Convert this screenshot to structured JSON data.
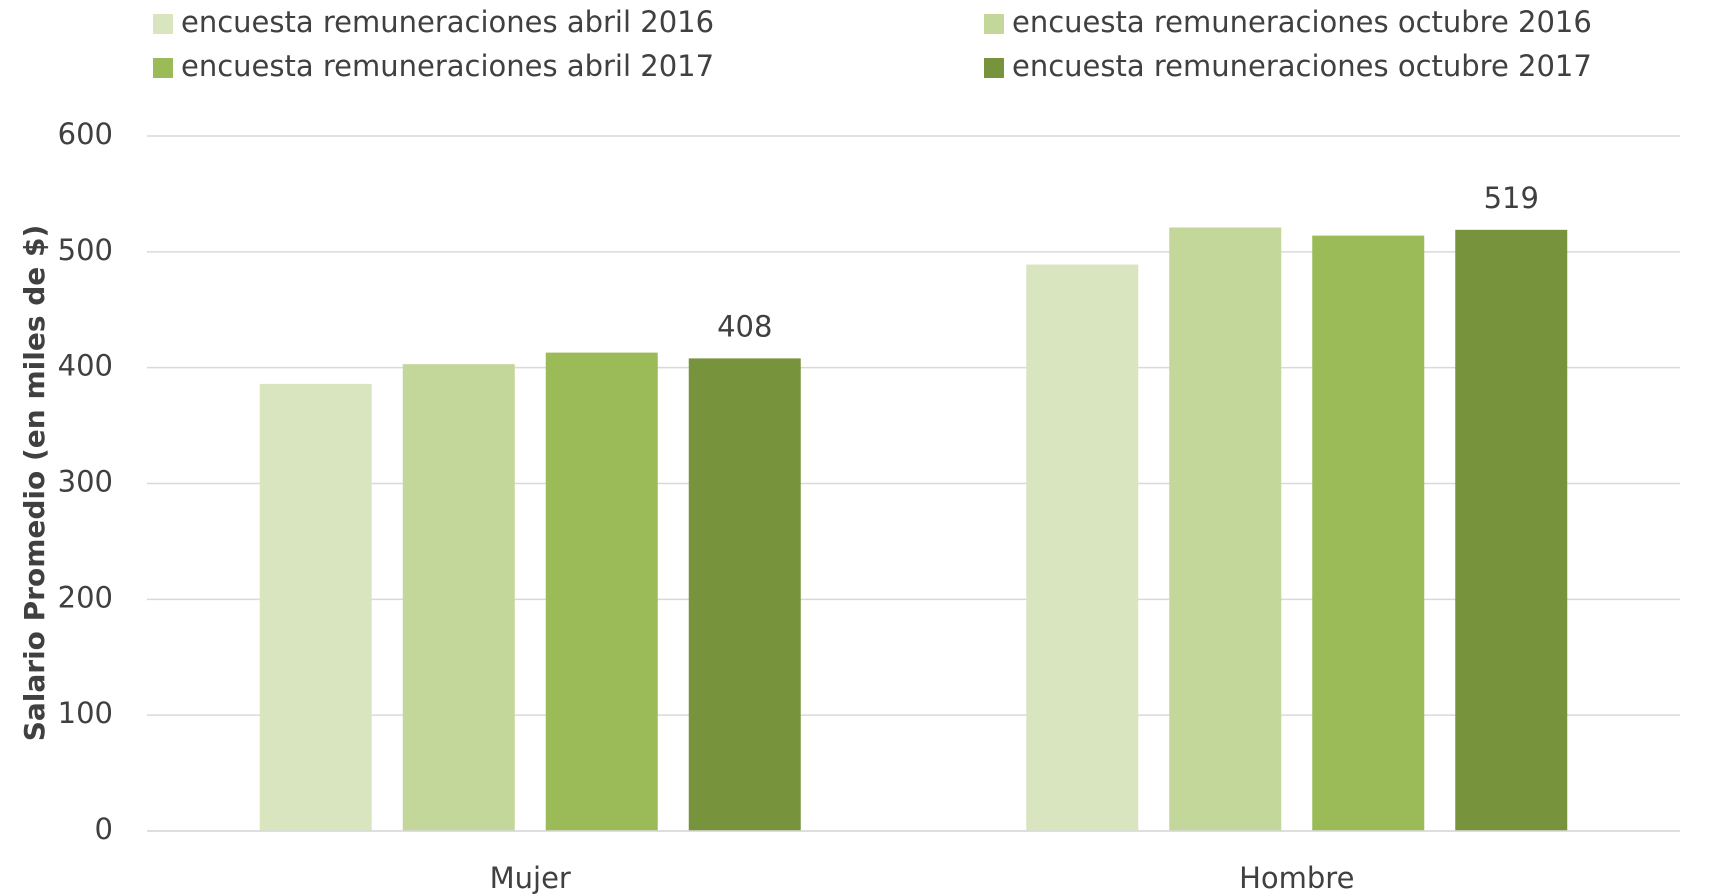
{
  "chart_data": {
    "type": "bar",
    "y_label": "Salario Promedio (en miles de $)",
    "categories": [
      "Mujer",
      "Hombre"
    ],
    "series": [
      {
        "name": "encuesta remuneraciones abril 2016",
        "color": "#d9e5bf",
        "values": [
          386,
          489
        ]
      },
      {
        "name": "encuesta remuneraciones octubre 2016",
        "color": "#c4d79b",
        "values": [
          403,
          521
        ]
      },
      {
        "name": "encuesta remuneraciones abril 2017",
        "color": "#9bbb59",
        "values": [
          413,
          514
        ]
      },
      {
        "name": "encuesta remuneraciones octubre 2017",
        "color": "#77933c",
        "values": [
          408,
          519
        ],
        "show_values": true
      }
    ],
    "ylim": [
      0,
      600
    ],
    "yticks": [
      0,
      100,
      200,
      300,
      400,
      500,
      600
    ],
    "grid": true,
    "legend": "top"
  }
}
